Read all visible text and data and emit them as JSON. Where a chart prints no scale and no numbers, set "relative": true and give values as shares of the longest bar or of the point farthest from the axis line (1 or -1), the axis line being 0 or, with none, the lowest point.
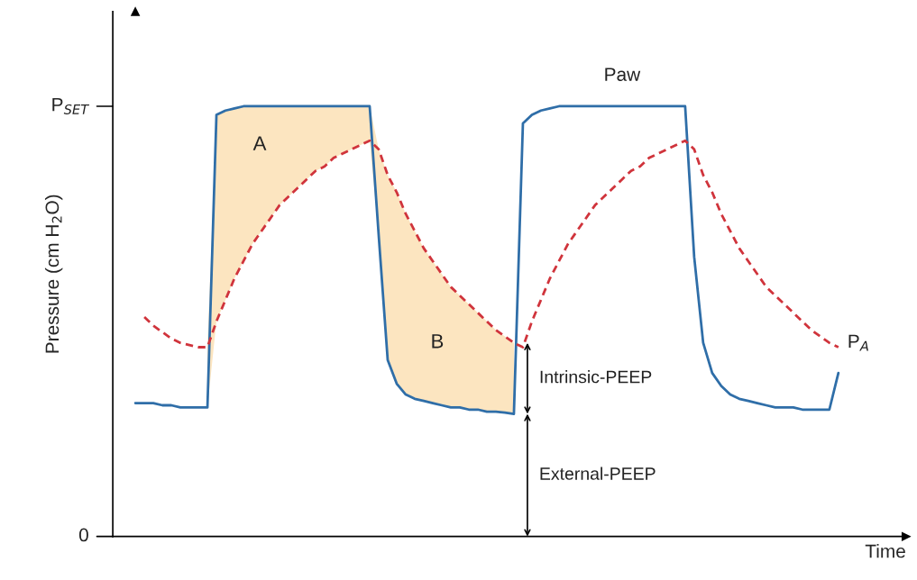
{
  "chart_data": {
    "type": "line",
    "xlabel": "Time",
    "ylabel": "Pressure (cm H$_{2}$O)",
    "categories": [
      null,
      null,
      null,
      null,
      null,
      null,
      null,
      null,
      null,
      null,
      null,
      null,
      null,
      null,
      null,
      null,
      null,
      null,
      null,
      null,
      null,
      null,
      null,
      null,
      null,
      null,
      null,
      null,
      null,
      null,
      null,
      null,
      null,
      null,
      null,
      null,
      null,
      null,
      null,
      null,
      null,
      null,
      null,
      null,
      null,
      null,
      null,
      null,
      null,
      null,
      null,
      null,
      null,
      null,
      null,
      null,
      null,
      null,
      null,
      null,
      null,
      null,
      null,
      null,
      null,
      null,
      null,
      null,
      null,
      null,
      null,
      null,
      null,
      null,
      null,
      null,
      null,
      null,
      null
    ],
    "series": [
      {
        "name": "Paw",
        "color": "#2f6ea8",
        "line_style": "solid",
        "values": [
          0.31,
          0.31,
          0.31,
          0.305,
          0.305,
          0.3,
          0.3,
          0.3,
          0.3,
          0.98,
          0.99,
          0.995,
          1.0,
          1.0,
          1.0,
          1.0,
          1.0,
          1.0,
          1.0,
          1.0,
          1.0,
          1.0,
          1.0,
          1.0,
          1.0,
          1.0,
          1.0,
          0.7,
          0.41,
          0.355,
          0.33,
          0.32,
          0.315,
          0.31,
          0.305,
          0.3,
          0.3,
          0.295,
          0.295,
          0.29,
          0.29,
          0.288,
          0.285,
          0.96,
          0.98,
          0.99,
          0.995,
          1.0,
          1.0,
          1.0,
          1.0,
          1.0,
          1.0,
          1.0,
          1.0,
          1.0,
          1.0,
          1.0,
          1.0,
          1.0,
          1.0,
          1.0,
          0.65,
          0.45,
          0.38,
          0.35,
          0.33,
          0.32,
          0.315,
          0.31,
          0.305,
          0.3,
          0.3,
          0.3,
          0.295,
          0.295,
          0.295,
          0.295,
          0.38
        ]
      },
      {
        "name": "P$_{A}$",
        "color": "#d0343c",
        "line_style": "dashed",
        "values": [
          null,
          0.51,
          0.49,
          0.475,
          0.46,
          0.45,
          0.445,
          0.44,
          0.44,
          0.5,
          0.55,
          0.6,
          0.64,
          0.68,
          0.71,
          0.74,
          0.77,
          0.79,
          0.81,
          0.83,
          0.85,
          0.86,
          0.88,
          0.89,
          0.9,
          0.91,
          0.92,
          0.9,
          0.84,
          0.8,
          0.75,
          0.71,
          0.67,
          0.64,
          0.61,
          0.58,
          0.56,
          0.54,
          0.52,
          0.5,
          0.48,
          0.465,
          0.45,
          0.44,
          0.5,
          0.55,
          0.6,
          0.64,
          0.68,
          0.71,
          0.74,
          0.77,
          0.79,
          0.81,
          0.83,
          0.85,
          0.86,
          0.88,
          0.89,
          0.9,
          0.91,
          0.92,
          0.9,
          0.84,
          0.8,
          0.75,
          0.71,
          0.67,
          0.64,
          0.61,
          0.58,
          0.56,
          0.54,
          0.52,
          0.5,
          0.48,
          0.465,
          0.45,
          0.44
        ],
        "lower": [
          null,
          null,
          null,
          null,
          null,
          null,
          null,
          null,
          0.3,
          0.5,
          0.55,
          0.6,
          0.64,
          0.68,
          0.71,
          0.74,
          0.77,
          0.79,
          0.81,
          0.83,
          0.85,
          0.86,
          0.88,
          0.89,
          0.9,
          0.91,
          0.92,
          0.7,
          0.41,
          0.355,
          0.33,
          0.32,
          0.315,
          0.31,
          0.305,
          0.3,
          0.3,
          0.295,
          0.295,
          0.29,
          0.29,
          0.288,
          0.285,
          null,
          null,
          null,
          null,
          null,
          null,
          null,
          null,
          null,
          null,
          null,
          null,
          null,
          null,
          null,
          null,
          null,
          null,
          null,
          null,
          null,
          null,
          null,
          null,
          null,
          null,
          null,
          null,
          null,
          null,
          null,
          null,
          null,
          null,
          null,
          null
        ],
        "upper": [
          null,
          null,
          null,
          null,
          null,
          null,
          null,
          null,
          0.44,
          0.98,
          0.99,
          0.995,
          1.0,
          1.0,
          1.0,
          1.0,
          1.0,
          1.0,
          1.0,
          1.0,
          1.0,
          1.0,
          1.0,
          1.0,
          1.0,
          1.0,
          1.0,
          0.9,
          0.84,
          0.8,
          0.75,
          0.71,
          0.67,
          0.64,
          0.61,
          0.58,
          0.56,
          0.54,
          0.52,
          0.5,
          0.48,
          0.465,
          0.45,
          null,
          null,
          null,
          null,
          null,
          null,
          null,
          null,
          null,
          null,
          null,
          null,
          null,
          null,
          null,
          null,
          null,
          null,
          null,
          null,
          null,
          null,
          null,
          null,
          null,
          null,
          null,
          null,
          null,
          null,
          null,
          null,
          null,
          null,
          null,
          null
        ]
      }
    ],
    "relative": true,
    "legend": false,
    "marker": "none",
    "annotations": [
      "A",
      "B",
      "Intrinsic-PEEP",
      "External-PEEP",
      "0",
      "P$_{SET}$"
    ]
  }
}
